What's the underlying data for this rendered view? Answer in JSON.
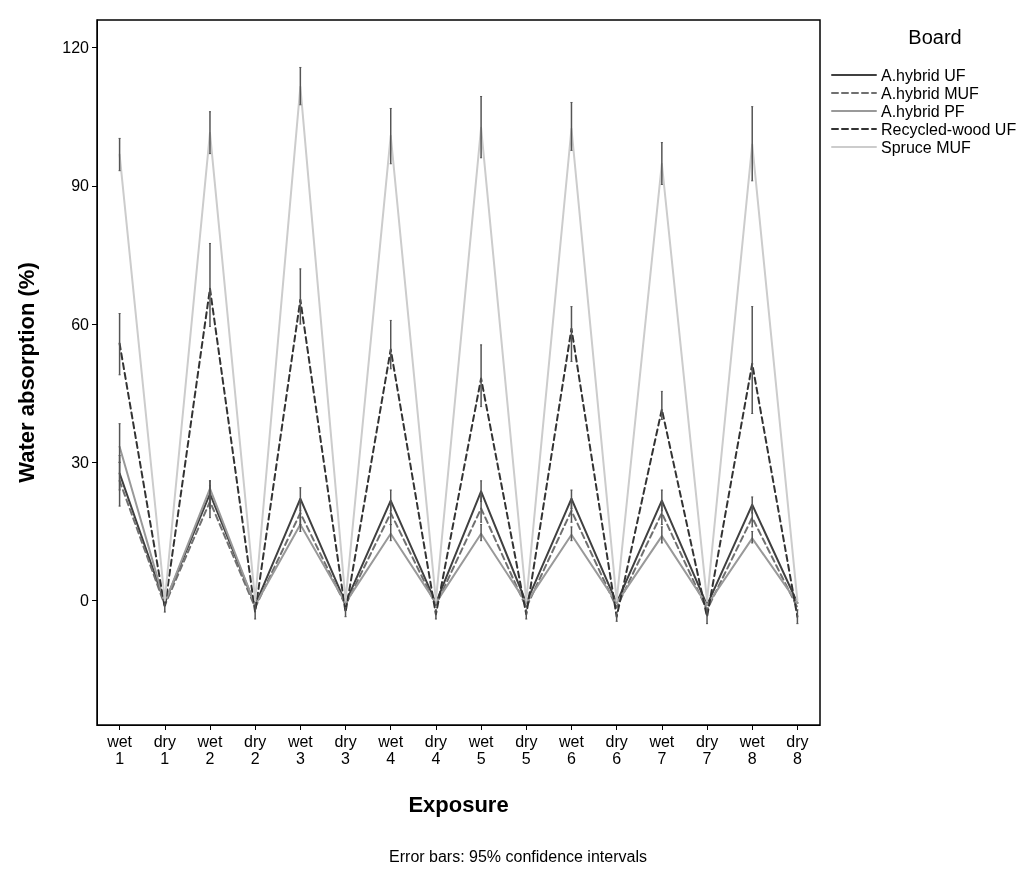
{
  "chart_data": {
    "type": "line",
    "xlabel": "Exposure",
    "ylabel": "Water absorption (%)",
    "legend_title": "Board",
    "annotations": [
      "Error bars: 95% confidence intervals"
    ],
    "categories": [
      "wet\n1",
      "dry\n1",
      "wet\n2",
      "dry\n2",
      "wet\n3",
      "dry\n3",
      "wet\n4",
      "dry\n4",
      "wet\n5",
      "dry\n5",
      "wet\n6",
      "dry\n6",
      "wet\n7",
      "dry\n7",
      "wet\n8",
      "dry\n8"
    ],
    "ylim": [
      -27,
      126
    ],
    "yticks": [
      0,
      30,
      60,
      90,
      120
    ],
    "grid": false,
    "legend": "top right",
    "marker": "none",
    "series": [
      {
        "name": "A.hybrid UF",
        "color": "#404040",
        "line_style": "solid",
        "values": [
          27.6,
          -0.5,
          23.2,
          -1,
          22.1,
          -0.5,
          21.7,
          -0.5,
          23.7,
          -0.5,
          22.1,
          -0.5,
          21.7,
          -1,
          20.8,
          -0.5
        ],
        "errors": [
          [
            24,
            31.5
          ],
          null,
          [
            20,
            26
          ],
          null,
          [
            19.5,
            24.5
          ],
          null,
          [
            19.5,
            24
          ],
          null,
          [
            21.5,
            26
          ],
          null,
          [
            20,
            24
          ],
          null,
          [
            19.5,
            24
          ],
          null,
          [
            19,
            22.5
          ],
          null
        ]
      },
      {
        "name": "A.hybrid MUF",
        "color": "#707070",
        "line_style": "dashed",
        "values": [
          26,
          -1,
          21.5,
          -1.5,
          19,
          -1,
          19,
          -1,
          20,
          -1.5,
          19.5,
          -1.5,
          19,
          -2,
          18,
          -1.5
        ],
        "errors": [
          [
            20.5,
            30
          ],
          null,
          [
            18,
            25
          ],
          null,
          [
            16.5,
            21.5
          ],
          null,
          [
            16.5,
            21.5
          ],
          null,
          [
            17,
            23
          ],
          null,
          [
            17,
            22
          ],
          null,
          [
            16.5,
            21.5
          ],
          null,
          [
            16,
            20
          ],
          null
        ]
      },
      {
        "name": "A.hybrid PF",
        "color": "#999999",
        "line_style": "solid",
        "values": [
          33.4,
          -0.5,
          24.3,
          -1,
          16.5,
          -0.5,
          14.5,
          -0.5,
          14.5,
          -0.5,
          14.3,
          -0.5,
          14,
          -1,
          13.5,
          -0.5
        ],
        "errors": [
          [
            30,
            38.4
          ],
          null,
          [
            21,
            26
          ],
          null,
          [
            15,
            18
          ],
          null,
          [
            13,
            16.5
          ],
          null,
          [
            13,
            16.5
          ],
          null,
          [
            13,
            16
          ],
          null,
          [
            12.5,
            16
          ],
          null,
          [
            12.5,
            15
          ],
          null
        ]
      },
      {
        "name": "Recycled-wood UF",
        "color": "#333333",
        "line_style": "dashed",
        "values": [
          55.8,
          -1.5,
          67.7,
          -2.5,
          65.3,
          -2.5,
          54.5,
          -3,
          48.2,
          -3,
          59,
          -3.5,
          41.5,
          -3.5,
          51.4,
          -3.5
        ],
        "errors": [
          [
            49,
            62.3
          ],
          1,
          [
            59.5,
            77.5
          ],
          1.5,
          [
            60,
            72
          ],
          1,
          [
            50.3,
            60.8
          ],
          1,
          [
            42.1,
            55.5
          ],
          1,
          [
            51.9,
            63.8
          ],
          1,
          [
            39.3,
            45.4
          ],
          1.5,
          [
            40.6,
            63.8
          ],
          1.5
        ]
      },
      {
        "name": "Spruce MUF",
        "color": "#cccccc",
        "line_style": "solid",
        "values": [
          96.8,
          0,
          101.5,
          0,
          111.5,
          0,
          100.9,
          0,
          102.6,
          0,
          102.4,
          0,
          94.8,
          0,
          99,
          0
        ],
        "errors": [
          [
            93.3,
            100.3
          ],
          null,
          [
            97,
            106.1
          ],
          null,
          [
            107.6,
            115.7
          ],
          null,
          [
            94.8,
            106.8
          ],
          null,
          [
            96.1,
            109.4
          ],
          null,
          [
            97.7,
            108.1
          ],
          null,
          [
            90.3,
            99.4
          ],
          null,
          [
            91.1,
            107.2
          ],
          null
        ]
      }
    ]
  }
}
